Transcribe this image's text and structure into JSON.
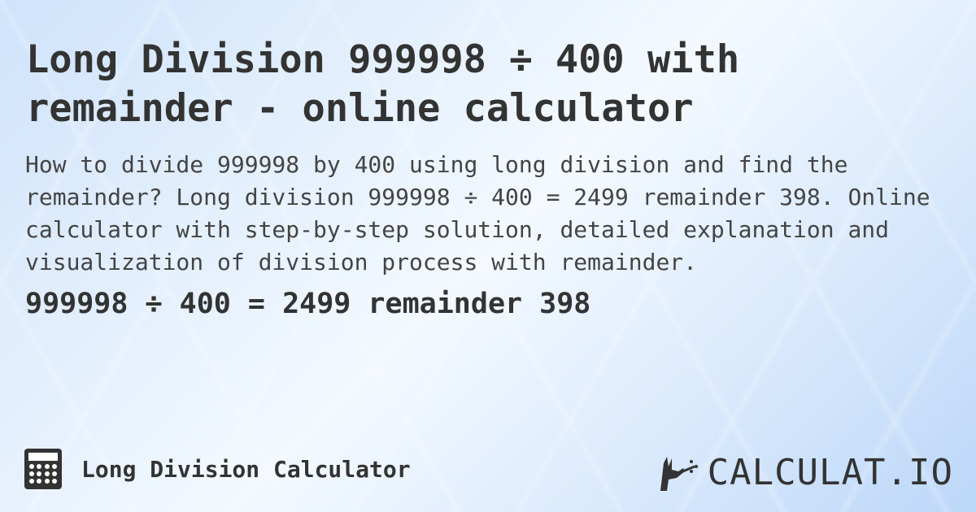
{
  "title": "Long Division 999998 ÷ 400 with remainder - online calculator",
  "description": "How to divide 999998 by 400 using long division and find the remainder? Long division 999998 ÷ 400 = 2499 remainder 398. Online calculator with step-by-step solution, detailed explanation and visualization of division process with remainder.",
  "result": "999998 ÷ 400 = 2499 remainder 398",
  "footer": {
    "calculator_name": "Long Division Calculator",
    "calculator_icon": "calculator-icon",
    "brand": "CALCULAT.IO",
    "brand_icon": "hand-wand-icon"
  }
}
